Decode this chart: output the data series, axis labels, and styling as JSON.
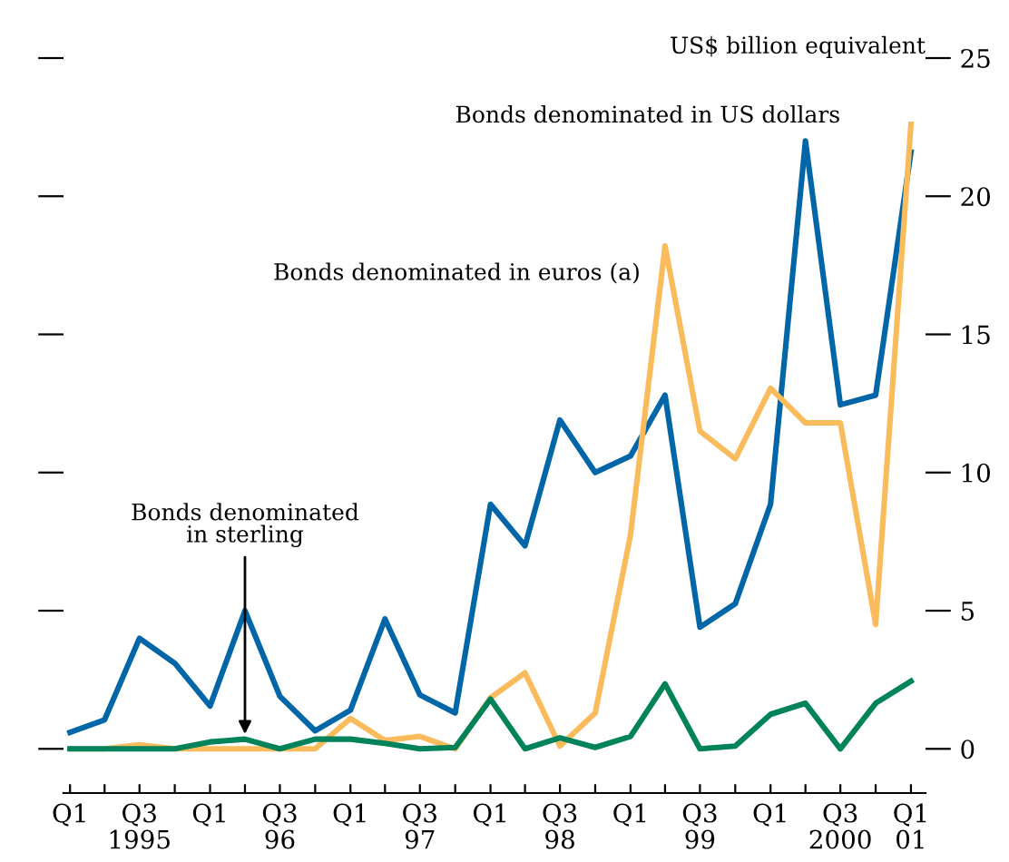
{
  "chart_data": {
    "type": "line",
    "ylabel": "US$ billion equivalent",
    "x": [
      "1995-01",
      "1995-04",
      "1995-07",
      "1995-10",
      "1996-01",
      "1996-04",
      "1996-07",
      "1996-10",
      "1997-01",
      "1997-04",
      "1997-07",
      "1997-10",
      "1998-01",
      "1998-04",
      "1998-07",
      "1998-10",
      "1999-01",
      "1999-04",
      "1999-07",
      "1999-10",
      "2000-01",
      "2000-04",
      "2000-07",
      "2000-10",
      "2001-01"
    ],
    "series": [
      {
        "name": "Bonds denominated in US dollars",
        "color": "#0066a8",
        "values": [
          0.6,
          1.05,
          4.0,
          3.1,
          1.55,
          5.0,
          1.9,
          0.65,
          1.4,
          4.7,
          1.95,
          1.3,
          8.85,
          7.35,
          11.9,
          10.0,
          10.6,
          12.8,
          4.4,
          5.25,
          8.85,
          22.0,
          12.45,
          12.8,
          21.6
        ]
      },
      {
        "name": "Bonds denominated in euros (a)",
        "color": "#f9bb5c",
        "values": [
          0,
          0,
          0.15,
          0,
          0,
          0,
          0,
          0,
          1.1,
          0.3,
          0.45,
          0,
          1.85,
          2.75,
          0.1,
          1.3,
          7.75,
          18.2,
          11.5,
          10.5,
          13.05,
          11.8,
          11.8,
          4.5,
          22.6
        ]
      },
      {
        "name": "Bonds denominated\nin sterling",
        "color": "#00835a",
        "values": [
          0,
          0,
          0,
          0,
          0.25,
          0.35,
          0,
          0.35,
          0.35,
          0.2,
          0,
          0.05,
          1.8,
          0,
          0.4,
          0.05,
          0.45,
          2.35,
          0,
          0.1,
          1.25,
          1.65,
          0,
          1.65,
          2.45
        ]
      }
    ],
    "xlim": [
      "1994-12-15",
      "2001-02-08"
    ],
    "xticks": [
      {
        "value": "1995-01",
        "label": "Q1"
      },
      {
        "value": "1995-04",
        "label": null
      },
      {
        "value": "1995-07",
        "label": "Q3\n1995"
      },
      {
        "value": "1995-10",
        "label": null
      },
      {
        "value": "1996-01",
        "label": "Q1"
      },
      {
        "value": "1996-04",
        "label": null
      },
      {
        "value": "1996-07",
        "label": "Q3\n96"
      },
      {
        "value": "1996-10",
        "label": null
      },
      {
        "value": "1997-01",
        "label": "Q1"
      },
      {
        "value": "1997-04",
        "label": null
      },
      {
        "value": "1997-07",
        "label": "Q3\n97"
      },
      {
        "value": "1997-10",
        "label": null
      },
      {
        "value": "1998-01",
        "label": "Q1"
      },
      {
        "value": "1998-04",
        "label": null
      },
      {
        "value": "1998-07",
        "label": "Q3\n98"
      },
      {
        "value": "1998-10",
        "label": null
      },
      {
        "value": "1999-01",
        "label": "Q1"
      },
      {
        "value": "1999-04",
        "label": null
      },
      {
        "value": "1999-07",
        "label": "Q3\n99"
      },
      {
        "value": "1999-10",
        "label": null
      },
      {
        "value": "2000-01",
        "label": "Q1"
      },
      {
        "value": "2000-04",
        "label": null
      },
      {
        "value": "2000-07",
        "label": "Q3\n2000"
      },
      {
        "value": "2000-10",
        "label": null
      },
      {
        "value": "2001-01",
        "label": "Q1\n01"
      }
    ],
    "ylim": [
      -1.6,
      25
    ],
    "yticks": [
      0,
      5,
      10,
      15,
      20,
      25
    ],
    "marker": "none",
    "line_style": "solid"
  }
}
